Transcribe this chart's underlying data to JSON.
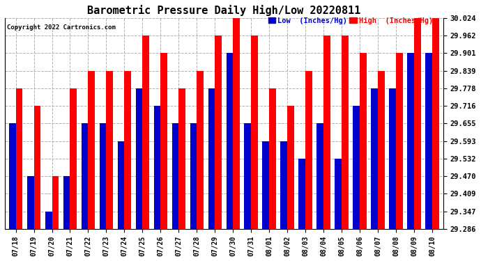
{
  "title": "Barometric Pressure Daily High/Low 20220811",
  "copyright": "Copyright 2022 Cartronics.com",
  "legend_low": "Low  (Inches/Hg)",
  "legend_high": "High  (Inches/Hg)",
  "dates": [
    "07/18",
    "07/19",
    "07/20",
    "07/21",
    "07/22",
    "07/23",
    "07/24",
    "07/25",
    "07/26",
    "07/27",
    "07/28",
    "07/29",
    "07/30",
    "07/31",
    "08/01",
    "08/02",
    "08/03",
    "08/04",
    "08/05",
    "08/06",
    "08/07",
    "08/08",
    "08/09",
    "08/10"
  ],
  "high": [
    29.778,
    29.716,
    29.47,
    29.778,
    29.839,
    29.839,
    29.839,
    29.962,
    29.901,
    29.778,
    29.839,
    29.962,
    30.024,
    29.962,
    29.778,
    29.716,
    29.839,
    29.962,
    29.962,
    29.901,
    29.839,
    29.901,
    30.024,
    30.024
  ],
  "low": [
    29.655,
    29.47,
    29.347,
    29.47,
    29.655,
    29.655,
    29.593,
    29.778,
    29.716,
    29.655,
    29.655,
    29.778,
    29.901,
    29.655,
    29.593,
    29.593,
    29.532,
    29.655,
    29.532,
    29.716,
    29.778,
    29.778,
    29.901,
    29.901
  ],
  "ylim_min": 29.286,
  "ylim_max": 30.024,
  "yticks": [
    29.286,
    29.347,
    29.409,
    29.47,
    29.532,
    29.593,
    29.655,
    29.716,
    29.778,
    29.839,
    29.901,
    29.962,
    30.024
  ],
  "bar_width": 0.38,
  "high_color": "#ff0000",
  "low_color": "#0000cc",
  "bg_color": "#ffffff",
  "grid_color": "#b0b0b0",
  "title_fontsize": 11,
  "tick_fontsize": 7,
  "ytick_fontsize": 7.5
}
